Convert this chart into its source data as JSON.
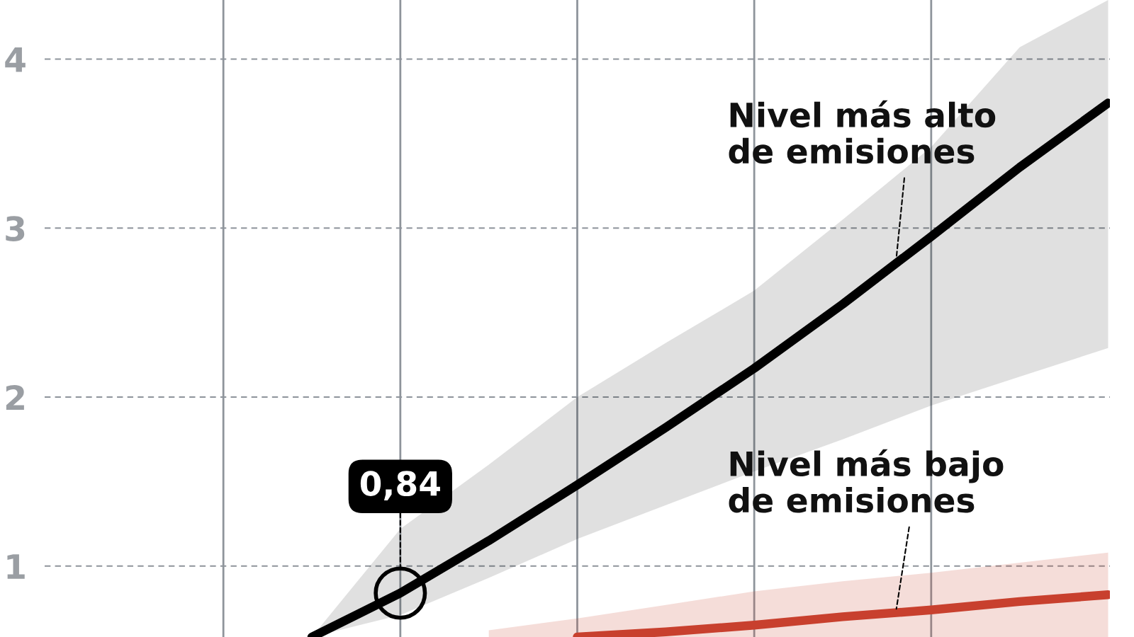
{
  "chart_data": {
    "type": "line",
    "categories": [
      null,
      null,
      null,
      null,
      null,
      null,
      null,
      null,
      null,
      null
    ],
    "ylim": [
      0.58,
      4.35
    ],
    "yticks": [
      1,
      2,
      3,
      4
    ],
    "grid": true,
    "line_style": "solid",
    "series": [
      {
        "name": "Nivel más alto\nde emisiones",
        "color": "#000000",
        "values": [
          0.58,
          0.84,
          1.15,
          1.48,
          1.82,
          2.17,
          2.55,
          2.95,
          3.36,
          3.74
        ],
        "lower": [
          0.58,
          0.71,
          0.93,
          1.16,
          1.36,
          1.56,
          1.75,
          1.95,
          2.12,
          2.29
        ],
        "upper": [
          0.58,
          1.22,
          1.6,
          2.0,
          2.32,
          2.63,
          3.05,
          3.48,
          4.07,
          4.35
        ],
        "value_labels": [
          null,
          "0,84",
          null,
          null,
          null,
          null,
          null,
          null,
          null,
          null
        ]
      },
      {
        "name": "Nivel más bajo\nde emisiones",
        "color": "#c8402e",
        "values": [
          null,
          null,
          null,
          0.58,
          0.61,
          0.65,
          0.7,
          0.74,
          0.79,
          0.83
        ],
        "lower": [
          null,
          null,
          0.58,
          0.58,
          0.58,
          0.58,
          0.58,
          0.58,
          0.58,
          0.58
        ],
        "upper": [
          null,
          null,
          0.62,
          0.69,
          0.77,
          0.85,
          0.91,
          0.96,
          1.02,
          1.08
        ]
      }
    ]
  }
}
